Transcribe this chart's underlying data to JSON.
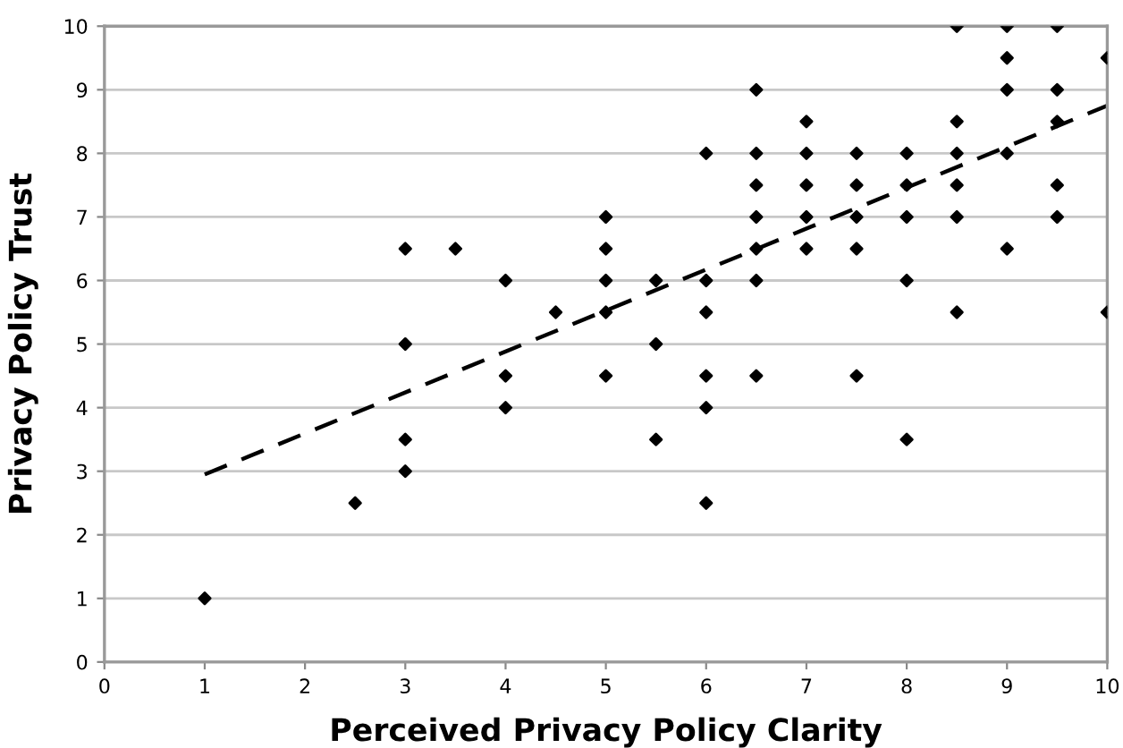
{
  "chart_data": {
    "type": "scatter",
    "xlabel": "Perceived Privacy Policy Clarity",
    "ylabel": "Privacy Policy Trust",
    "xlim": [
      0,
      10
    ],
    "ylim": [
      0,
      10
    ],
    "xticks": [
      0,
      1,
      2,
      3,
      4,
      5,
      6,
      7,
      8,
      9,
      10
    ],
    "yticks": [
      0,
      1,
      2,
      3,
      4,
      5,
      6,
      7,
      8,
      9,
      10
    ],
    "grid": "y",
    "legend": false,
    "marker": "diamond",
    "series": [
      {
        "color": "#000000",
        "x": [
          1,
          2.5,
          3,
          3,
          3,
          3,
          3.5,
          4,
          4,
          4,
          4.5,
          5,
          5,
          5,
          5,
          5,
          5.5,
          5.5,
          5.5,
          6,
          6,
          6,
          6,
          6,
          6,
          6.5,
          6.5,
          6.5,
          6.5,
          6.5,
          6.5,
          6.5,
          7,
          7,
          7,
          7,
          7,
          7.5,
          7.5,
          7.5,
          7.5,
          7.5,
          8,
          8,
          8,
          8,
          8,
          8.5,
          8.5,
          8.5,
          8.5,
          8.5,
          8.5,
          9,
          9,
          9,
          9,
          9,
          9.5,
          9.5,
          9.5,
          9.5,
          9.5,
          10,
          10
        ],
        "values": [
          1,
          2.5,
          6.5,
          5,
          3.5,
          3,
          6.5,
          6,
          4.5,
          4,
          5.5,
          7,
          6.5,
          6,
          5.5,
          4.5,
          6,
          5,
          3.5,
          8,
          6,
          5.5,
          4.5,
          4,
          2.5,
          9,
          8,
          7.5,
          7,
          6.5,
          6,
          4.5,
          8.5,
          8,
          7.5,
          7,
          6.5,
          8,
          7.5,
          7,
          6.5,
          4.5,
          8,
          7.5,
          7,
          6,
          3.5,
          10,
          8.5,
          8,
          7.5,
          7,
          5.5,
          10,
          9.5,
          9,
          8,
          6.5,
          10,
          9,
          8.5,
          7.5,
          7,
          9.5,
          5.5
        ]
      },
      {
        "type": "line",
        "color": "#000000",
        "marker": "none",
        "line_style": "dashed",
        "x": [
          1,
          10
        ],
        "values": [
          2.95,
          8.75
        ]
      }
    ]
  }
}
